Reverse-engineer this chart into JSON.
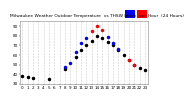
{
  "title": "Milwaukee Weather Outdoor Temperature vs THSW Index per Hour (24 Hours)",
  "hours": [
    0,
    1,
    2,
    3,
    4,
    5,
    6,
    7,
    8,
    9,
    10,
    11,
    12,
    13,
    14,
    15,
    16,
    17,
    18,
    19,
    20,
    21,
    22,
    23
  ],
  "outdoor_temp": [
    38,
    37,
    36,
    null,
    null,
    35,
    null,
    null,
    45,
    null,
    58,
    65,
    70,
    75,
    80,
    78,
    74,
    70,
    65,
    60,
    55,
    50,
    47,
    44
  ],
  "thsw_index": [
    null,
    null,
    null,
    null,
    null,
    null,
    null,
    null,
    48,
    52,
    63,
    72,
    78,
    85,
    90,
    86,
    79,
    72,
    66,
    null,
    null,
    null,
    null,
    null
  ],
  "thsw_red": [
    null,
    null,
    null,
    null,
    null,
    null,
    null,
    null,
    null,
    null,
    null,
    null,
    null,
    null,
    null,
    null,
    null,
    null,
    null,
    null,
    55,
    50,
    null,
    null
  ],
  "temp_color": "#000000",
  "thsw_color_blue": "#0000ff",
  "thsw_color_red": "#ff0000",
  "bg_color": "#ffffff",
  "grid_color": "#cccccc",
  "ylim": [
    30,
    95
  ],
  "xlim": [
    -0.5,
    23.5
  ],
  "marker_size": 1.5,
  "tick_fontsize": 3.0,
  "title_fontsize": 3.2,
  "yticks": [
    30,
    40,
    50,
    60,
    70,
    80,
    90
  ]
}
